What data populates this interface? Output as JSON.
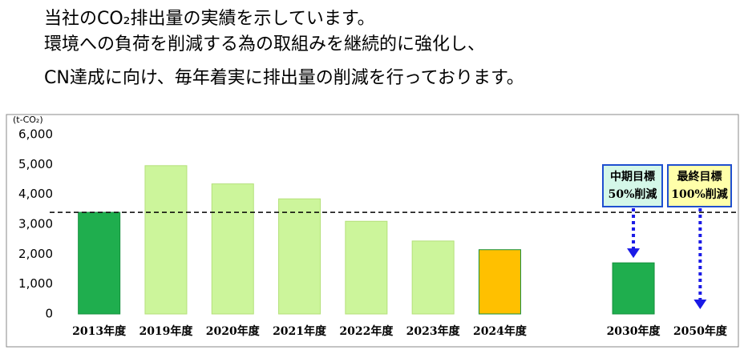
{
  "intro": [
    "当社のCO₂排出量の実績を示しています。",
    "環境への負荷を削減する為の取組みを継続的に強化し、",
    "CN達成に向け、毎年着実に排出量の削減を行っております。"
  ],
  "chart_data": {
    "type": "bar",
    "y_label": "(t-CO₂)",
    "categories": [
      "2013年度",
      "2019年度",
      "2020年度",
      "2021年度",
      "2022年度",
      "2023年度",
      "2024年度",
      null,
      "2030年度",
      "2050年度"
    ],
    "values": [
      3400,
      4960,
      4350,
      3850,
      3100,
      2440,
      2150,
      null,
      1710,
      0
    ],
    "colors": [
      "#1fae4e",
      "#ccf59b",
      "#ccf59b",
      "#ccf59b",
      "#ccf59b",
      "#ccf59b",
      "#ffc000",
      null,
      "#1fae4e",
      "#1fae4e"
    ],
    "ylim": [
      0,
      6000
    ],
    "yticks": [
      0,
      {
        "value": 1000,
        "label": "1,000"
      },
      {
        "value": 2000,
        "label": "2,000"
      },
      {
        "value": 3000,
        "label": "3,000"
      },
      {
        "value": 4000,
        "label": "4,000"
      },
      {
        "value": 5000,
        "label": "5,000"
      },
      {
        "value": 6000,
        "label": "6,000"
      }
    ],
    "reference_line": 3400,
    "annotations": [
      {
        "lines": [
          "中期目標",
          "50%削減"
        ],
        "color": "#d4f7e8"
      },
      {
        "lines": [
          "最終目標",
          "100%削減"
        ],
        "color": "#ffffaa"
      }
    ]
  }
}
